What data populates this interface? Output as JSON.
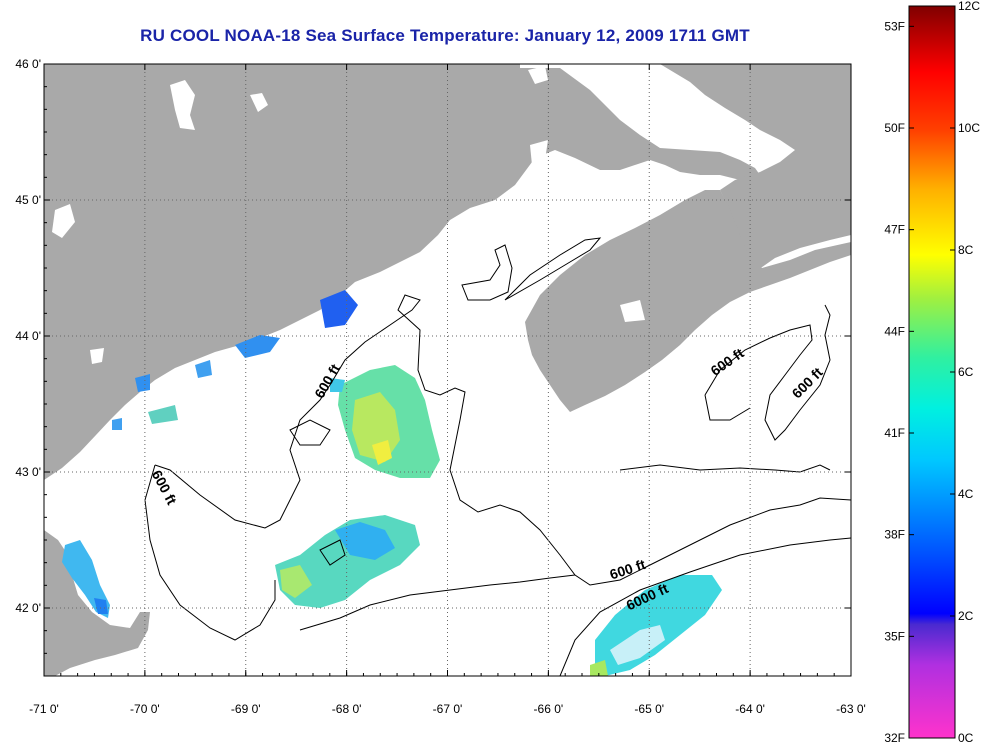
{
  "title": "RU COOL  NOAA-18  Sea Surface Temperature:  January 12, 2009 1711 GMT",
  "map": {
    "lon_range": [
      -71,
      -63
    ],
    "lat_range": [
      41.5,
      46
    ],
    "lon_ticks": [
      {
        "value": -71,
        "label": "-71 0'"
      },
      {
        "value": -70,
        "label": "-70 0'"
      },
      {
        "value": -69,
        "label": "-69 0'"
      },
      {
        "value": -68,
        "label": "-68 0'"
      },
      {
        "value": -67,
        "label": "-67 0'"
      },
      {
        "value": -66,
        "label": "-66 0'"
      },
      {
        "value": -65,
        "label": "-65 0'"
      },
      {
        "value": -64,
        "label": "-64 0'"
      },
      {
        "value": -63,
        "label": "-63 0'"
      }
    ],
    "lat_ticks": [
      {
        "value": 46,
        "label": "46 0'"
      },
      {
        "value": 45,
        "label": "45 0'"
      },
      {
        "value": 44,
        "label": "44 0'"
      },
      {
        "value": 43,
        "label": "43 0'"
      },
      {
        "value": 42,
        "label": "42 0'"
      }
    ],
    "grid": "dotted",
    "land_color": "#a9a9a9",
    "water_color": "#ffffff",
    "contour_labels": [
      {
        "text": "600 ft",
        "lon": -68.15,
        "lat": 43.65,
        "rotate": -60
      },
      {
        "text": "600 ft",
        "lon": -69.85,
        "lat": 42.87,
        "rotate": 62
      },
      {
        "text": "600 ft",
        "lon": -64.2,
        "lat": 43.78,
        "rotate": -35
      },
      {
        "text": "600 ft",
        "lon": -63.4,
        "lat": 43.63,
        "rotate": -45
      },
      {
        "text": "600 ft",
        "lon": -65.2,
        "lat": 42.25,
        "rotate": -18
      },
      {
        "text": "6000 ft",
        "lon": -65.0,
        "lat": 42.05,
        "rotate": -25
      }
    ]
  },
  "colorbar": {
    "min_c": 0,
    "max_c": 12,
    "left_labels": [
      "53F",
      "50F",
      "47F",
      "44F",
      "41F",
      "38F",
      "35F",
      "32F"
    ],
    "right_labels": [
      "12C",
      "10C",
      "8C",
      "6C",
      "4C",
      "2C",
      "0C"
    ]
  }
}
